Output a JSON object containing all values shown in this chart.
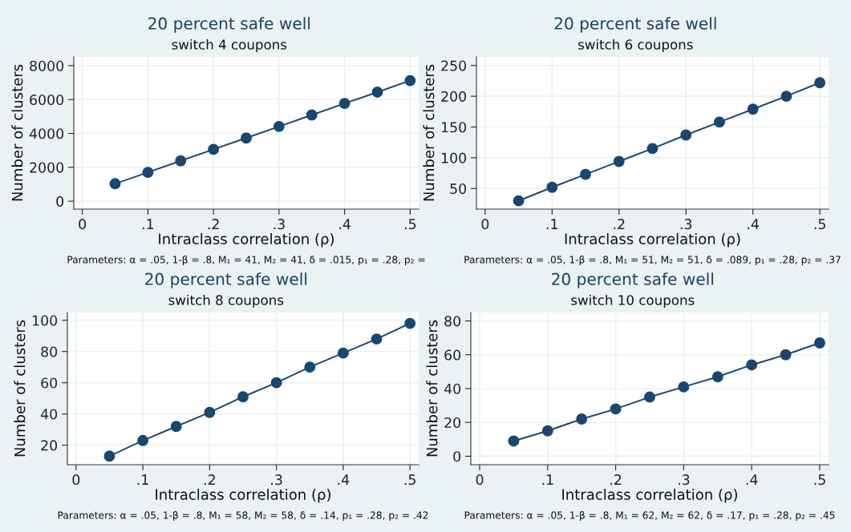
{
  "chart_data": [
    {
      "type": "line",
      "title": "20 percent safe well",
      "subtitle": "switch 4 coupons",
      "xlabel": "Intraclass correlation (ρ)",
      "ylabel": "Number of clusters",
      "x": [
        0.05,
        0.1,
        0.15,
        0.2,
        0.25,
        0.3,
        0.35,
        0.4,
        0.45,
        0.5
      ],
      "series": [
        {
          "color": "#1a476f",
          "values": [
            1030,
            1700,
            2380,
            3060,
            3730,
            4410,
            5090,
            5770,
            6440,
            7120
          ]
        }
      ],
      "xlim": [
        -0.013,
        0.513
      ],
      "xticks": [
        0,
        {
          "value": 0.1,
          "label": ".1"
        },
        {
          "value": 0.2,
          "label": ".2"
        },
        {
          "value": 0.3,
          "label": ".3"
        },
        {
          "value": 0.4,
          "label": ".4"
        },
        {
          "value": 0.5,
          "label": ".5"
        }
      ],
      "ylim": [
        -470,
        8520
      ],
      "yticks": [
        0,
        2000,
        4000,
        6000,
        8000
      ],
      "grid": true,
      "marker": "circle",
      "line_style": "solid",
      "annotations": [
        "Parameters: α = .05, 1-β = .8, M₁ = 41, M₂ = 41, δ = .015, p₁ = .28, p₂ ="
      ]
    },
    {
      "type": "line",
      "title": "20 percent safe well",
      "subtitle": "switch 6 coupons",
      "xlabel": "Intraclass correlation (ρ)",
      "ylabel": "Number of clusters",
      "x": [
        0.05,
        0.1,
        0.15,
        0.2,
        0.25,
        0.3,
        0.35,
        0.4,
        0.45,
        0.5
      ],
      "series": [
        {
          "color": "#1a476f",
          "values": [
            30,
            52,
            73,
            94,
            115,
            137,
            158,
            179,
            200,
            222
          ]
        }
      ],
      "xlim": [
        -0.013,
        0.513
      ],
      "xticks": [
        0,
        {
          "value": 0.1,
          "label": ".1"
        },
        {
          "value": 0.2,
          "label": ".2"
        },
        {
          "value": 0.3,
          "label": ".3"
        },
        {
          "value": 0.4,
          "label": ".4"
        },
        {
          "value": 0.5,
          "label": ".5"
        }
      ],
      "ylim": [
        16.5,
        264
      ],
      "yticks": [
        50,
        100,
        150,
        200,
        250
      ],
      "grid": true,
      "marker": "circle",
      "line_style": "solid",
      "annotations": [
        "Parameters: α = .05, 1-β = .8, M₁ = 51, M₂ = 51, δ = .089, p₁ = .28, p₂ = .37"
      ]
    },
    {
      "type": "line",
      "title": "20 percent safe well",
      "subtitle": "switch 8 coupons",
      "xlabel": "Intraclass correlation (ρ)",
      "ylabel": "Number of clusters",
      "x": [
        0.05,
        0.1,
        0.15,
        0.2,
        0.25,
        0.3,
        0.35,
        0.4,
        0.45,
        0.5
      ],
      "series": [
        {
          "color": "#1a476f",
          "values": [
            13,
            23,
            32,
            41,
            51,
            60,
            70,
            79,
            88,
            98
          ]
        }
      ],
      "xlim": [
        -0.013,
        0.513
      ],
      "xticks": [
        0,
        {
          "value": 0.1,
          "label": ".1"
        },
        {
          "value": 0.2,
          "label": ".2"
        },
        {
          "value": 0.3,
          "label": ".3"
        },
        {
          "value": 0.4,
          "label": ".4"
        },
        {
          "value": 0.5,
          "label": ".5"
        }
      ],
      "ylim": [
        7.5,
        105
      ],
      "yticks": [
        20,
        40,
        60,
        80,
        100
      ],
      "grid": true,
      "marker": "circle",
      "line_style": "solid",
      "annotations": [
        "Parameters: α = .05, 1-β = .8, M₁ = 58, M₂ = 58, δ = .14, p₁ = .28, p₂ = .42"
      ]
    },
    {
      "type": "line",
      "title": "20 percent safe well",
      "subtitle": "switch 10 coupons",
      "xlabel": "Intraclass correlation (ρ)",
      "ylabel": "Number of clusters",
      "x": [
        0.05,
        0.1,
        0.15,
        0.2,
        0.25,
        0.3,
        0.35,
        0.4,
        0.45,
        0.5
      ],
      "series": [
        {
          "color": "#1a476f",
          "values": [
            9,
            15,
            22,
            28,
            35,
            41,
            47,
            54,
            60,
            67
          ]
        }
      ],
      "xlim": [
        -0.013,
        0.513
      ],
      "xticks": [
        0,
        {
          "value": 0.1,
          "label": ".1"
        },
        {
          "value": 0.2,
          "label": ".2"
        },
        {
          "value": 0.3,
          "label": ".3"
        },
        {
          "value": 0.4,
          "label": ".4"
        },
        {
          "value": 0.5,
          "label": ".5"
        }
      ],
      "ylim": [
        -5,
        85
      ],
      "yticks": [
        0,
        20,
        40,
        60,
        80
      ],
      "grid": true,
      "marker": "circle",
      "line_style": "solid",
      "annotations": [
        "Parameters: α = .05, 1-β = .8, M₁ = 62, M₂ = 62, δ = .17, p₁ = .28, p₂ = .45"
      ]
    }
  ]
}
